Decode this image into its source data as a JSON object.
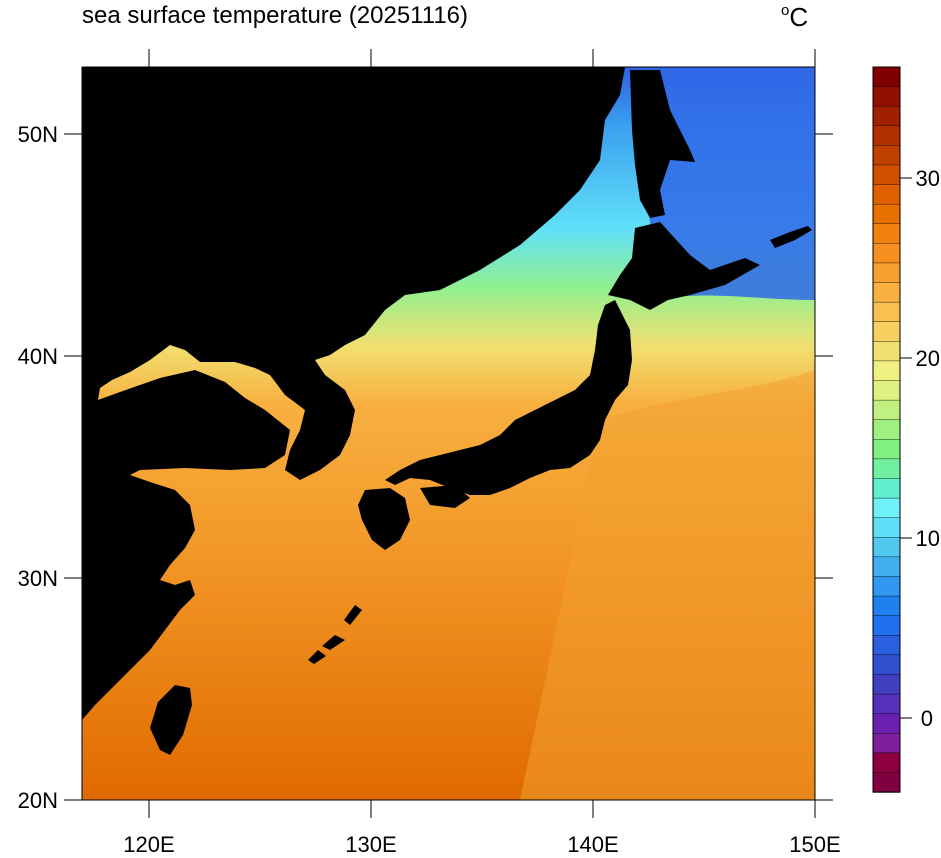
{
  "map": {
    "title": "sea surface temperature (20251116)",
    "unit_degree": "o",
    "unit_letter": "C",
    "lat_labels": [
      "50N",
      "40N",
      "30N",
      "20N"
    ],
    "lon_labels": [
      "120E",
      "130E",
      "140E",
      "150E"
    ],
    "lat_range": [
      20,
      53
    ],
    "lon_range": [
      117,
      150
    ],
    "land_color": "#000000"
  },
  "colorbar": {
    "labels": [
      "30",
      "20",
      "10",
      "0"
    ],
    "colors": [
      "#800040",
      "#8c0040",
      "#7e1fa0",
      "#6a1fb0",
      "#5530b8",
      "#4040c0",
      "#3050d0",
      "#2860e0",
      "#2070f0",
      "#2080f0",
      "#3098f0",
      "#40b0f0",
      "#50c8f0",
      "#60e0f8",
      "#70f0f8",
      "#60f0d0",
      "#70f0a0",
      "#80f080",
      "#a0f080",
      "#c0f080",
      "#e0f080",
      "#f0f080",
      "#f0e070",
      "#f8d060",
      "#f8c050",
      "#f8b040",
      "#f8a030",
      "#f89020",
      "#f08010",
      "#e87000",
      "#e06000",
      "#d05000",
      "#c04000",
      "#b03000",
      "#a02000",
      "#901000",
      "#800000"
    ]
  }
}
